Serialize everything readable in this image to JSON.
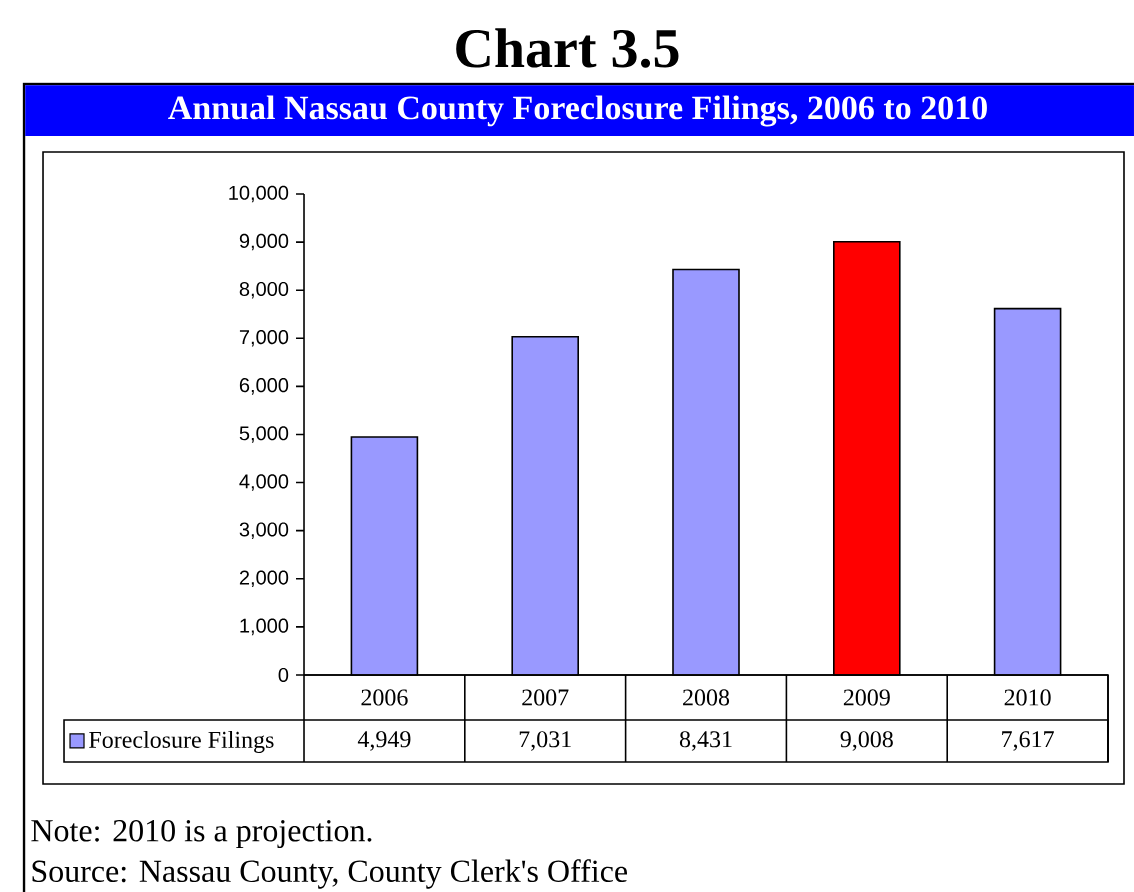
{
  "chart_data": {
    "type": "bar",
    "title": "Chart 3.5",
    "subtitle": "Annual Nassau County Foreclosure Filings, 2006 to 2010",
    "categories": [
      "2006",
      "2007",
      "2008",
      "2009",
      "2010"
    ],
    "series": [
      {
        "name": "Foreclosure Filings",
        "color": "#9999ff",
        "colors": [
          "#9999ff",
          "#9999ff",
          "#9999ff",
          "#ff0000",
          "#9999ff"
        ],
        "values": [
          4949,
          7031,
          8431,
          9008,
          7617
        ],
        "value_labels": [
          "4,949",
          "7,031",
          "8,431",
          "9,008",
          "7,617"
        ]
      }
    ],
    "ylim": [
      0,
      10000
    ],
    "yticks": [
      0,
      {
        "value": 1000,
        "label": "1,000"
      },
      {
        "value": 2000,
        "label": "2,000"
      },
      {
        "value": 3000,
        "label": "3,000"
      },
      {
        "value": 4000,
        "label": "4,000"
      },
      {
        "value": 5000,
        "label": "5,000"
      },
      {
        "value": 6000,
        "label": "6,000"
      },
      {
        "value": 7000,
        "label": "7,000"
      },
      {
        "value": 8000,
        "label": "8,000"
      },
      {
        "value": 9000,
        "label": "9,000"
      },
      {
        "value": 10000,
        "label": "10,000"
      }
    ],
    "legend": "bottom left",
    "grid": false,
    "annotations": [
      "Note: 2010 is a projection.",
      "Source: Nassau County, County Clerk's Office"
    ]
  }
}
